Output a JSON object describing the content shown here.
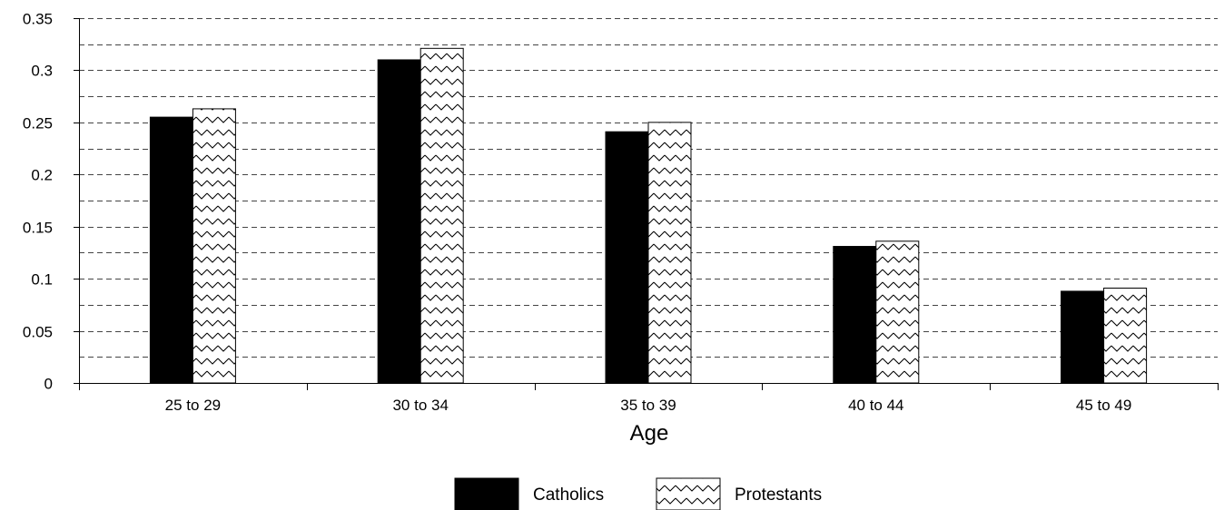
{
  "chart_data": {
    "type": "bar",
    "categories": [
      "25 to 29",
      "30 to 34",
      "35 to 39",
      "40 to 44",
      "45 to 49"
    ],
    "series": [
      {
        "name": "Catholics",
        "values": [
          0.255,
          0.31,
          0.241,
          0.131,
          0.088
        ],
        "fill": "solid",
        "color": "#000000"
      },
      {
        "name": "Protestants",
        "values": [
          0.263,
          0.321,
          0.25,
          0.136,
          0.091
        ],
        "fill": "zigzag-pattern",
        "color": "#ffffff"
      }
    ],
    "xlabel": "Age",
    "ylabel": "",
    "ylim": [
      0,
      0.35
    ],
    "yticks": [
      "0",
      "0.05",
      "0.1",
      "0.15",
      "0.2",
      "0.25",
      "0.3",
      "0.35"
    ],
    "minor_gridline_step": 0.025,
    "grid": "horizontal-dashed",
    "legend": "bottom-center"
  }
}
